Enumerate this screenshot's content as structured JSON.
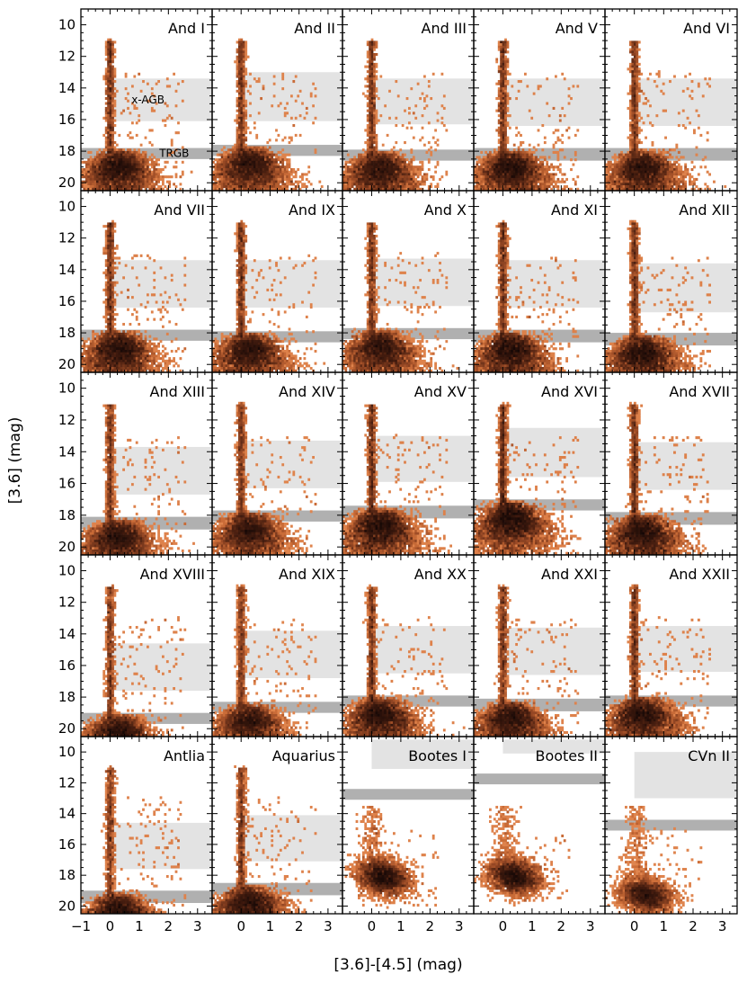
{
  "chart_data": {
    "type": "heatmap",
    "description_kind": "grid of color-magnitude Hess diagrams",
    "xlabel": "[3.6]-[4.5] (mag)",
    "ylabel": "[3.6] (mag)",
    "xlim": [
      -1.0,
      3.5
    ],
    "ylim": [
      20.5,
      9.0
    ],
    "y_inverted": true,
    "xticks": [
      -1,
      0,
      1,
      2,
      3
    ],
    "yticks": [
      10,
      12,
      14,
      16,
      18,
      20
    ],
    "grid_rows": 5,
    "grid_cols": 5,
    "band_labels": {
      "xagb": "x-AGB",
      "trgb": "TRGB"
    },
    "colors": {
      "xagb_band": "#e3e3e3",
      "trgb_band": "#b0b0b0",
      "density_low": "#ee9a68",
      "density_high": "#160806"
    },
    "panels": [
      {
        "name": "And I",
        "xagb": [
          13.4,
          16.1
        ],
        "trgb": [
          17.8,
          18.5
        ],
        "density": "broad"
      },
      {
        "name": "And II",
        "xagb": [
          13.0,
          16.1
        ],
        "trgb": [
          17.6,
          18.3
        ],
        "density": "broad"
      },
      {
        "name": "And III",
        "xagb": [
          13.4,
          16.3
        ],
        "trgb": [
          17.9,
          18.6
        ],
        "density": "broad"
      },
      {
        "name": "And V",
        "xagb": [
          13.4,
          16.4
        ],
        "trgb": [
          17.8,
          18.6
        ],
        "density": "broad"
      },
      {
        "name": "And VI",
        "xagb": [
          13.4,
          16.4
        ],
        "trgb": [
          17.8,
          18.6
        ],
        "density": "broad"
      },
      {
        "name": "And VII",
        "xagb": [
          13.4,
          16.4
        ],
        "trgb": [
          17.8,
          18.5
        ],
        "density": "broad"
      },
      {
        "name": "And IX",
        "xagb": [
          13.4,
          16.4
        ],
        "trgb": [
          17.9,
          18.6
        ],
        "density": "broad"
      },
      {
        "name": "And X",
        "xagb": [
          13.3,
          16.3
        ],
        "trgb": [
          17.7,
          18.4
        ],
        "density": "broad"
      },
      {
        "name": "And XI",
        "xagb": [
          13.4,
          16.4
        ],
        "trgb": [
          17.8,
          18.6
        ],
        "density": "broad"
      },
      {
        "name": "And XII",
        "xagb": [
          13.6,
          16.7
        ],
        "trgb": [
          18.0,
          18.8
        ],
        "density": "broad"
      },
      {
        "name": "And XIII",
        "xagb": [
          13.7,
          16.7
        ],
        "trgb": [
          18.1,
          18.9
        ],
        "density": "broad"
      },
      {
        "name": "And XIV",
        "xagb": [
          13.3,
          16.3
        ],
        "trgb": [
          17.7,
          18.4
        ],
        "density": "broad"
      },
      {
        "name": "And XV",
        "xagb": [
          13.0,
          15.9
        ],
        "trgb": [
          17.4,
          18.2
        ],
        "density": "broad"
      },
      {
        "name": "And XVI",
        "xagb": [
          12.5,
          15.6
        ],
        "trgb": [
          17.0,
          17.7
        ],
        "density": "broad"
      },
      {
        "name": "And XVII",
        "xagb": [
          13.4,
          16.4
        ],
        "trgb": [
          17.8,
          18.6
        ],
        "density": "broad"
      },
      {
        "name": "And XVIII",
        "xagb": [
          14.6,
          17.6
        ],
        "trgb": [
          19.0,
          19.7
        ],
        "density": "broad"
      },
      {
        "name": "And XIX",
        "xagb": [
          13.8,
          16.8
        ],
        "trgb": [
          18.3,
          19.0
        ],
        "density": "broad"
      },
      {
        "name": "And XX",
        "xagb": [
          13.5,
          16.5
        ],
        "trgb": [
          17.9,
          18.6
        ],
        "density": "broad"
      },
      {
        "name": "And XXI",
        "xagb": [
          13.6,
          16.6
        ],
        "trgb": [
          18.1,
          18.9
        ],
        "density": "broad"
      },
      {
        "name": "And XXII",
        "xagb": [
          13.5,
          16.4
        ],
        "trgb": [
          17.9,
          18.6
        ],
        "density": "broad"
      },
      {
        "name": "Antlia",
        "xagb": [
          14.6,
          17.6
        ],
        "trgb": [
          19.0,
          19.8
        ],
        "density": "broad"
      },
      {
        "name": "Aquarius",
        "xagb": [
          14.1,
          17.1
        ],
        "trgb": [
          18.5,
          19.3
        ],
        "density": "broad"
      },
      {
        "name": "Bootes I",
        "xagb": [
          9.2,
          11.1
        ],
        "trgb": [
          12.4,
          13.1
        ],
        "density": "compact"
      },
      {
        "name": "Bootes II",
        "xagb": [
          9.2,
          10.1
        ],
        "trgb": [
          11.4,
          12.1
        ],
        "density": "compact"
      },
      {
        "name": "CVn II",
        "xagb": [
          10.0,
          13.0
        ],
        "trgb": [
          14.4,
          15.1
        ],
        "density": "compact"
      }
    ]
  }
}
